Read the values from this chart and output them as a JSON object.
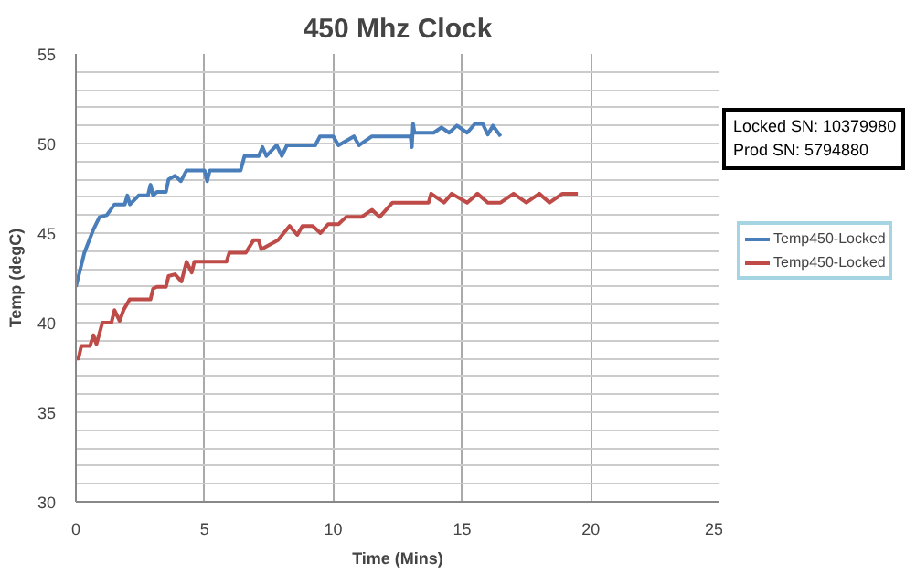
{
  "chart_data": {
    "type": "line",
    "title": "450 Mhz Clock",
    "xlabel": "Time (Mins)",
    "ylabel": "Temp (degC)",
    "annotations": [
      "Locked SN: 10379980",
      "Prod SN: 5794880"
    ],
    "xlim": [
      0,
      25
    ],
    "ylim": [
      30,
      55
    ],
    "xticks": [
      0,
      5,
      10,
      15,
      20,
      25
    ],
    "yticks": [
      30,
      {
        "value": 31,
        "label": null
      },
      {
        "value": 32,
        "label": null
      },
      {
        "value": 33,
        "label": null
      },
      {
        "value": 34,
        "label": null
      },
      35,
      {
        "value": 36,
        "label": null
      },
      {
        "value": 37,
        "label": null
      },
      {
        "value": 38,
        "label": null
      },
      {
        "value": 39,
        "label": null
      },
      40,
      {
        "value": 41,
        "label": null
      },
      {
        "value": 42,
        "label": null
      },
      {
        "value": 43,
        "label": null
      },
      {
        "value": 44,
        "label": null
      },
      45,
      {
        "value": 46,
        "label": null
      },
      {
        "value": 47,
        "label": null
      },
      {
        "value": 48,
        "label": null
      },
      {
        "value": 49,
        "label": null
      },
      50,
      {
        "value": 51,
        "label": null
      },
      {
        "value": 52,
        "label": null
      },
      {
        "value": 53,
        "label": null
      },
      {
        "value": 54,
        "label": null
      },
      55
    ],
    "grid": true,
    "legend": "right",
    "marker": "none",
    "line_style": "solid",
    "series": [
      {
        "name": "Temp450-Locked",
        "color": "#4a7ebb",
        "x": [
          0,
          0.33,
          0.68,
          0.92,
          1.2,
          1.5,
          1.9,
          2.0,
          2.1,
          2.44,
          2.8,
          2.9,
          3.0,
          3.15,
          3.5,
          3.6,
          3.85,
          4.08,
          4.3,
          4.8,
          5.0,
          5.1,
          5.2,
          5.8,
          6.4,
          6.55,
          7.1,
          7.25,
          7.4,
          7.8,
          8.0,
          8.2,
          8.5,
          9.3,
          9.48,
          10.0,
          10.2,
          10.8,
          11.0,
          11.5,
          12.0,
          12.06,
          13.0,
          13.05,
          13.1,
          13.15,
          13.9,
          14.2,
          14.5,
          14.8,
          15.2,
          15.5,
          15.8,
          16.0,
          16.2,
          16.5
        ],
        "values": [
          42.0,
          43.9,
          45.2,
          45.9,
          46.0,
          46.6,
          46.6,
          47.1,
          46.6,
          47.1,
          47.1,
          47.7,
          47.1,
          47.3,
          47.3,
          48.0,
          48.2,
          47.9,
          48.5,
          48.5,
          48.5,
          47.9,
          48.5,
          48.5,
          48.5,
          49.3,
          49.3,
          49.8,
          49.3,
          49.9,
          49.3,
          49.9,
          49.9,
          49.9,
          50.4,
          50.4,
          49.9,
          50.4,
          49.9,
          50.4,
          50.4,
          50.4,
          50.4,
          49.8,
          51.1,
          50.6,
          50.6,
          50.9,
          50.6,
          51.0,
          50.6,
          51.1,
          51.1,
          50.5,
          51.0,
          50.4
        ]
      },
      {
        "name": "Temp450-Locked",
        "color": "#be4b48",
        "x": [
          0,
          0.1,
          0.21,
          0.55,
          0.68,
          0.8,
          1.03,
          1.38,
          1.5,
          1.7,
          1.85,
          2.09,
          2.9,
          3.0,
          3.15,
          3.5,
          3.6,
          3.85,
          4.1,
          4.3,
          4.5,
          4.6,
          4.8,
          5.85,
          5.96,
          6.6,
          6.9,
          7.1,
          7.2,
          7.85,
          8.3,
          8.6,
          8.8,
          9.2,
          9.5,
          9.8,
          10.2,
          10.5,
          11.1,
          11.5,
          11.8,
          12.3,
          13.7,
          13.8,
          14.3,
          14.6,
          15.2,
          15.6,
          16.0,
          16.5,
          17.0,
          17.5,
          18.0,
          18.4,
          18.9,
          19.5
        ],
        "values": [
          38.0,
          38.0,
          38.7,
          38.7,
          39.3,
          38.8,
          40.0,
          40.0,
          40.7,
          40.1,
          40.7,
          41.3,
          41.3,
          41.9,
          42.0,
          42.0,
          42.6,
          42.7,
          42.3,
          43.4,
          42.8,
          43.4,
          43.4,
          43.4,
          43.9,
          43.9,
          44.6,
          44.6,
          44.1,
          44.6,
          45.4,
          44.9,
          45.4,
          45.4,
          45.0,
          45.5,
          45.5,
          45.9,
          45.9,
          46.3,
          45.9,
          46.7,
          46.7,
          47.2,
          46.7,
          47.2,
          46.7,
          47.2,
          46.7,
          46.7,
          47.2,
          46.7,
          47.2,
          46.7,
          47.2,
          47.2
        ]
      }
    ]
  }
}
